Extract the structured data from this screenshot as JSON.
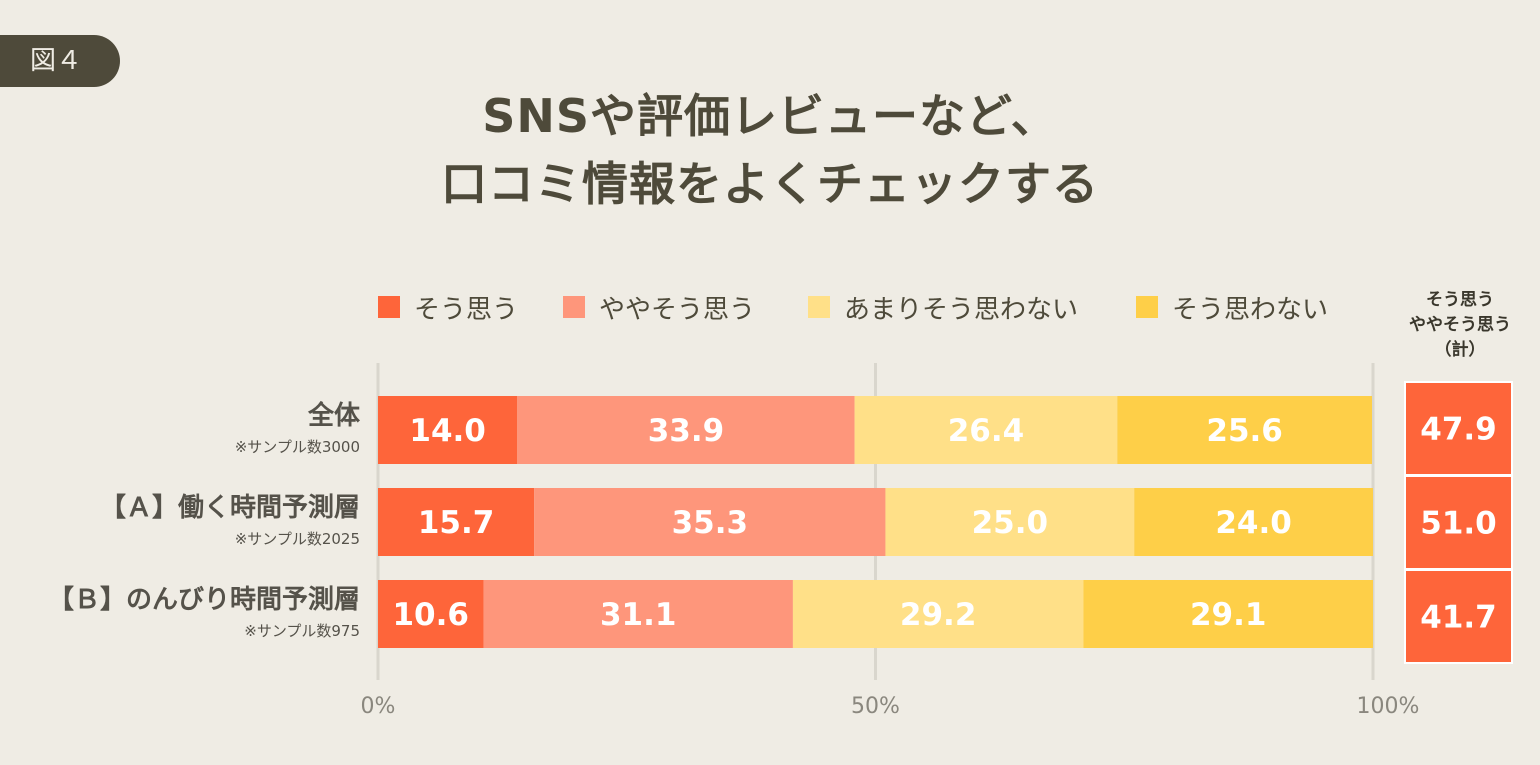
{
  "figure_label": "図４",
  "title_lines": [
    "SNSや評価レビューなど、",
    "口コミ情報をよくチェックする"
  ],
  "summary_header": [
    "そう思う",
    "ややそう思う",
    "（計）"
  ],
  "chart_data": {
    "type": "bar",
    "orientation": "horizontal",
    "stacked": true,
    "title": "SNSや評価レビューなど、口コミ情報をよくチェックする",
    "categories": [
      {
        "label": "全体",
        "note": "※サンプル数3000"
      },
      {
        "label": "【Ａ】働く時間予測層",
        "note": "※サンプル数2025"
      },
      {
        "label": "【Ｂ】のんびり時間予測層",
        "note": "※サンプル数975"
      }
    ],
    "series": [
      {
        "name": "そう思う",
        "color": "#fe653a",
        "values": [
          14.0,
          15.7,
          10.6
        ]
      },
      {
        "name": "ややそう思う",
        "color": "#fe967b",
        "values": [
          33.9,
          35.3,
          31.1
        ]
      },
      {
        "name": "あまりそう思わない",
        "color": "#ffe088",
        "values": [
          26.4,
          25.0,
          29.2
        ]
      },
      {
        "name": "そう思わない",
        "color": "#fecf48",
        "values": [
          25.6,
          24.0,
          29.1
        ]
      }
    ],
    "totals": {
      "label": "そう思う ややそう思う（計）",
      "color": "#fe653a",
      "values": [
        47.9,
        51.0,
        41.7
      ]
    },
    "xlim": [
      0,
      100
    ],
    "xticks": [
      "0%",
      "50%",
      "100%"
    ],
    "xtick_values": [
      0,
      50,
      100
    ],
    "grid": true,
    "legend": "top"
  }
}
